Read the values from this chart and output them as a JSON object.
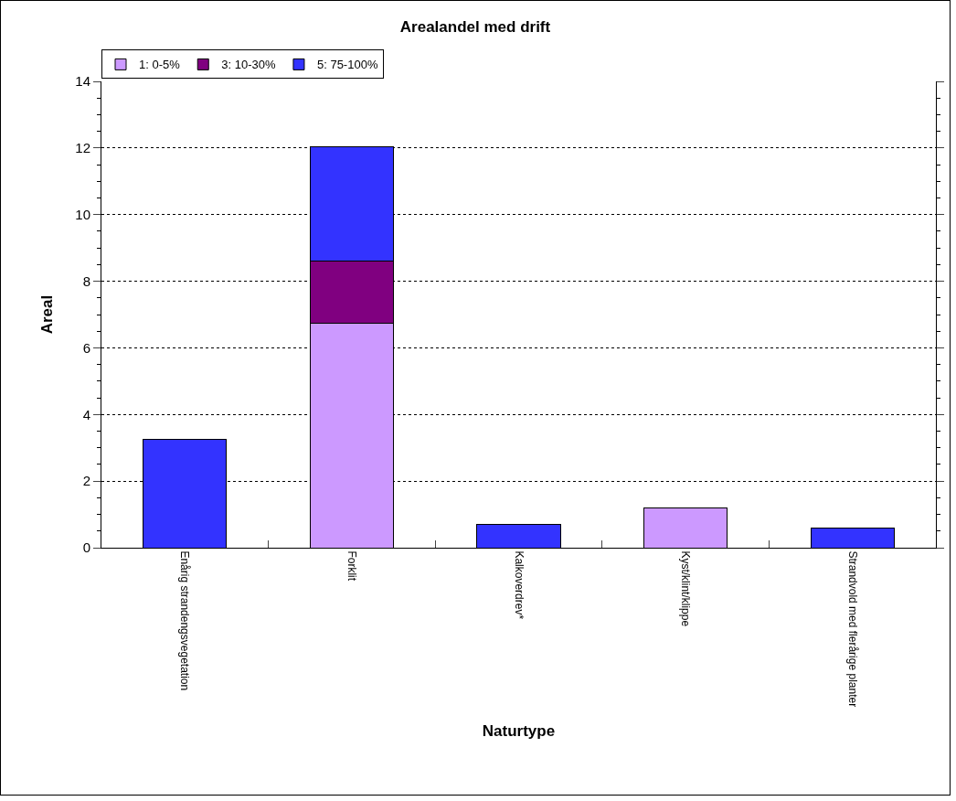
{
  "chart_data": {
    "type": "bar",
    "title": "Arealandel med drift",
    "xlabel": "Naturtype",
    "ylabel": "Areal",
    "categories": [
      "Enårig strandengsvegetation",
      "Forklit",
      "Kalkoverdrev*",
      "Kyst/klint/klippe",
      "Strandvold med flerårige planter"
    ],
    "stacked": true,
    "series": [
      {
        "name": "1: 0-5%",
        "color": "#cc99ff",
        "values": [
          null,
          6.75,
          null,
          1.2,
          null
        ]
      },
      {
        "name": "3: 10-30%",
        "color": "#800080",
        "values": [
          null,
          1.85,
          null,
          null,
          null
        ]
      },
      {
        "name": "5: 75-100%",
        "color": "#3333ff",
        "values": [
          3.25,
          3.45,
          0.7,
          null,
          0.6
        ]
      }
    ],
    "ylim": [
      0,
      14
    ],
    "yticks": [
      0,
      2,
      4,
      6,
      8,
      10,
      12,
      14
    ],
    "grid": "y",
    "legend": "top left"
  }
}
